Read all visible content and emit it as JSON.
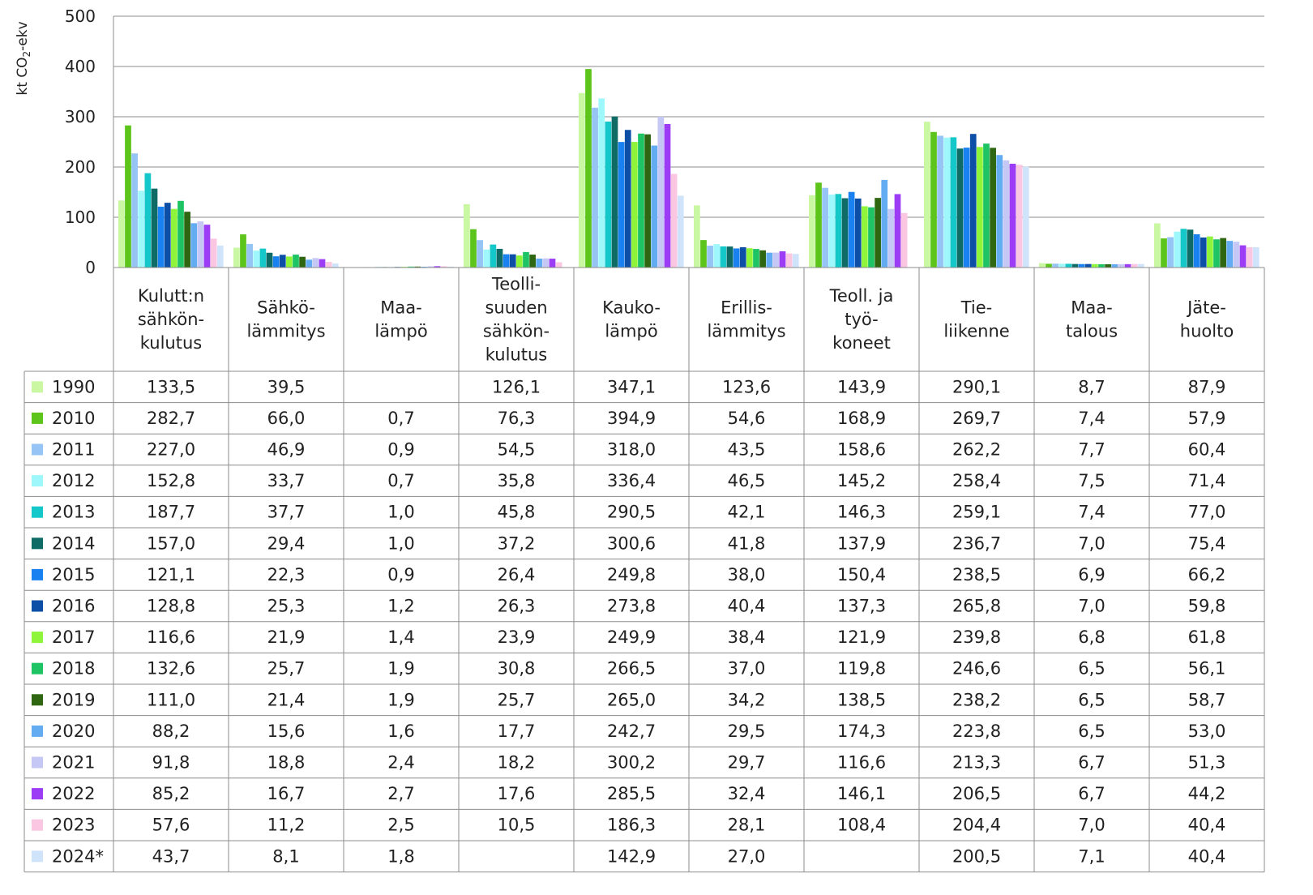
{
  "chart_data": {
    "type": "bar",
    "ylabel_main": "kt CO",
    "ylabel_sub": "2",
    "ylabel_tail": "-ekv",
    "ylim": [
      0,
      500
    ],
    "yticks": [
      0,
      100,
      200,
      300,
      400,
      500
    ],
    "grid": true,
    "categories": [
      [
        "Kulutt:n",
        "sähkön-",
        "kulutus"
      ],
      [
        "Sähkö-",
        "lämmitys"
      ],
      [
        "Maa-",
        "lämpö"
      ],
      [
        "Teolli-",
        "suuden",
        "sähkön-",
        "kulutus"
      ],
      [
        "Kauko-",
        "lämpö"
      ],
      [
        "Erillis-",
        "lämmitys"
      ],
      [
        "Teoll. ja",
        "työ-",
        "koneet"
      ],
      [
        "Tie-",
        "liikenne"
      ],
      [
        "Maa-",
        "talous"
      ],
      [
        "Jäte-",
        "huolto"
      ]
    ],
    "series": [
      {
        "name": "1990",
        "color": "#c9f7a2",
        "values": [
          133.5,
          39.5,
          null,
          126.1,
          347.1,
          123.6,
          143.9,
          290.1,
          8.7,
          87.9
        ],
        "labels": [
          "133,5",
          "39,5",
          "",
          "126,1",
          "347,1",
          "123,6",
          "143,9",
          "290,1",
          "8,7",
          "87,9"
        ]
      },
      {
        "name": "2010",
        "color": "#5cc41a",
        "values": [
          282.7,
          66.0,
          0.7,
          76.3,
          394.9,
          54.6,
          168.9,
          269.7,
          7.4,
          57.9
        ],
        "labels": [
          "282,7",
          "66,0",
          "0,7",
          "76,3",
          "394,9",
          "54,6",
          "168,9",
          "269,7",
          "7,4",
          "57,9"
        ]
      },
      {
        "name": "2011",
        "color": "#96c4f5",
        "values": [
          227.0,
          46.9,
          0.9,
          54.5,
          318.0,
          43.5,
          158.6,
          262.2,
          7.7,
          60.4
        ],
        "labels": [
          "227,0",
          "46,9",
          "0,9",
          "54,5",
          "318,0",
          "43,5",
          "158,6",
          "262,2",
          "7,7",
          "60,4"
        ]
      },
      {
        "name": "2012",
        "color": "#9ef7fa",
        "values": [
          152.8,
          33.7,
          0.7,
          35.8,
          336.4,
          46.5,
          145.2,
          258.4,
          7.5,
          71.4
        ],
        "labels": [
          "152,8",
          "33,7",
          "0,7",
          "35,8",
          "336,4",
          "46,5",
          "145,2",
          "258,4",
          "7,5",
          "71,4"
        ]
      },
      {
        "name": "2013",
        "color": "#14c7c9",
        "values": [
          187.7,
          37.7,
          1.0,
          45.8,
          290.5,
          42.1,
          146.3,
          259.1,
          7.4,
          77.0
        ],
        "labels": [
          "187,7",
          "37,7",
          "1,0",
          "45,8",
          "290,5",
          "42,1",
          "146,3",
          "259,1",
          "7,4",
          "77,0"
        ]
      },
      {
        "name": "2014",
        "color": "#0e6b66",
        "values": [
          157.0,
          29.4,
          1.0,
          37.2,
          300.6,
          41.8,
          137.9,
          236.7,
          7.0,
          75.4
        ],
        "labels": [
          "157,0",
          "29,4",
          "1,0",
          "37,2",
          "300,6",
          "41,8",
          "137,9",
          "236,7",
          "7,0",
          "75,4"
        ]
      },
      {
        "name": "2015",
        "color": "#1a82f0",
        "values": [
          121.1,
          22.3,
          0.9,
          26.4,
          249.8,
          38.0,
          150.4,
          238.5,
          6.9,
          66.2
        ],
        "labels": [
          "121,1",
          "22,3",
          "0,9",
          "26,4",
          "249,8",
          "38,0",
          "150,4",
          "238,5",
          "6,9",
          "66,2"
        ]
      },
      {
        "name": "2016",
        "color": "#0d4ea6",
        "values": [
          128.8,
          25.3,
          1.2,
          26.3,
          273.8,
          40.4,
          137.3,
          265.8,
          7.0,
          59.8
        ],
        "labels": [
          "128,8",
          "25,3",
          "1,2",
          "26,3",
          "273,8",
          "40,4",
          "137,3",
          "265,8",
          "7,0",
          "59,8"
        ]
      },
      {
        "name": "2017",
        "color": "#8ef53a",
        "values": [
          116.6,
          21.9,
          1.4,
          23.9,
          249.9,
          38.4,
          121.9,
          239.8,
          6.8,
          61.8
        ],
        "labels": [
          "116,6",
          "21,9",
          "1,4",
          "23,9",
          "249,9",
          "38,4",
          "121,9",
          "239,8",
          "6,8",
          "61,8"
        ]
      },
      {
        "name": "2018",
        "color": "#1ec464",
        "values": [
          132.6,
          25.7,
          1.9,
          30.8,
          266.5,
          37.0,
          119.8,
          246.6,
          6.5,
          56.1
        ],
        "labels": [
          "132,6",
          "25,7",
          "1,9",
          "30,8",
          "266,5",
          "37,0",
          "119,8",
          "246,6",
          "6,5",
          "56,1"
        ]
      },
      {
        "name": "2019",
        "color": "#2e6611",
        "values": [
          111.0,
          21.4,
          1.9,
          25.7,
          265.0,
          34.2,
          138.5,
          238.2,
          6.5,
          58.7
        ],
        "labels": [
          "111,0",
          "21,4",
          "1,9",
          "25,7",
          "265,0",
          "34,2",
          "138,5",
          "238,2",
          "6,5",
          "58,7"
        ]
      },
      {
        "name": "2020",
        "color": "#63acf2",
        "values": [
          88.2,
          15.6,
          1.6,
          17.7,
          242.7,
          29.5,
          174.3,
          223.8,
          6.5,
          53.0
        ],
        "labels": [
          "88,2",
          "15,6",
          "1,6",
          "17,7",
          "242,7",
          "29,5",
          "174,3",
          "223,8",
          "6,5",
          "53,0"
        ]
      },
      {
        "name": "2021",
        "color": "#c5c7f5",
        "values": [
          91.8,
          18.8,
          2.4,
          18.2,
          300.2,
          29.7,
          116.6,
          213.3,
          6.7,
          51.3
        ],
        "labels": [
          "91,8",
          "18,8",
          "2,4",
          "18,2",
          "300,2",
          "29,7",
          "116,6",
          "213,3",
          "6,7",
          "51,3"
        ]
      },
      {
        "name": "2022",
        "color": "#9c3cf5",
        "values": [
          85.2,
          16.7,
          2.7,
          17.6,
          285.5,
          32.4,
          146.1,
          206.5,
          6.7,
          44.2
        ],
        "labels": [
          "85,2",
          "16,7",
          "2,7",
          "17,6",
          "285,5",
          "32,4",
          "146,1",
          "206,5",
          "6,7",
          "44,2"
        ]
      },
      {
        "name": "2023",
        "color": "#fac6e2",
        "values": [
          57.6,
          11.2,
          2.5,
          10.5,
          186.3,
          28.1,
          108.4,
          204.4,
          7.0,
          40.4
        ],
        "labels": [
          "57,6",
          "11,2",
          "2,5",
          "10,5",
          "186,3",
          "28,1",
          "108,4",
          "204,4",
          "7,0",
          "40,4"
        ]
      },
      {
        "name": "2024*",
        "color": "#cfe3fa",
        "values": [
          43.7,
          8.1,
          1.8,
          null,
          142.9,
          27.0,
          null,
          200.5,
          7.1,
          40.4
        ],
        "labels": [
          "43,7",
          "8,1",
          "1,8",
          "",
          "142,9",
          "27,0",
          "",
          "200,5",
          "7,1",
          "40,4"
        ]
      }
    ]
  }
}
